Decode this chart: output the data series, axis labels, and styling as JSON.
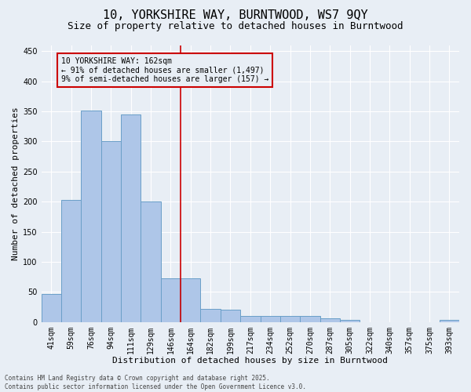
{
  "title1": "10, YORKSHIRE WAY, BURNTWOOD, WS7 9QY",
  "title2": "Size of property relative to detached houses in Burntwood",
  "xlabel": "Distribution of detached houses by size in Burntwood",
  "ylabel": "Number of detached properties",
  "categories": [
    "41sqm",
    "59sqm",
    "76sqm",
    "94sqm",
    "111sqm",
    "129sqm",
    "146sqm",
    "164sqm",
    "182sqm",
    "199sqm",
    "217sqm",
    "234sqm",
    "252sqm",
    "270sqm",
    "287sqm",
    "305sqm",
    "322sqm",
    "340sqm",
    "357sqm",
    "375sqm",
    "393sqm"
  ],
  "values": [
    46,
    203,
    351,
    300,
    345,
    200,
    73,
    73,
    22,
    20,
    10,
    10,
    10,
    10,
    6,
    3,
    0,
    0,
    0,
    0,
    3
  ],
  "bar_color": "#aec6e8",
  "bar_edge_color": "#6a9fc8",
  "vline_color": "#cc0000",
  "annotation_text": "10 YORKSHIRE WAY: 162sqm\n← 91% of detached houses are smaller (1,497)\n9% of semi-detached houses are larger (157) →",
  "annotation_box_color": "#cc0000",
  "ylim": [
    0,
    460
  ],
  "yticks": [
    0,
    50,
    100,
    150,
    200,
    250,
    300,
    350,
    400,
    450
  ],
  "background_color": "#e8eef5",
  "grid_color": "#ffffff",
  "footer_text": "Contains HM Land Registry data © Crown copyright and database right 2025.\nContains public sector information licensed under the Open Government Licence v3.0.",
  "title1_fontsize": 11,
  "title2_fontsize": 9,
  "xlabel_fontsize": 8,
  "ylabel_fontsize": 8,
  "tick_fontsize": 7,
  "footer_fontsize": 5.5
}
